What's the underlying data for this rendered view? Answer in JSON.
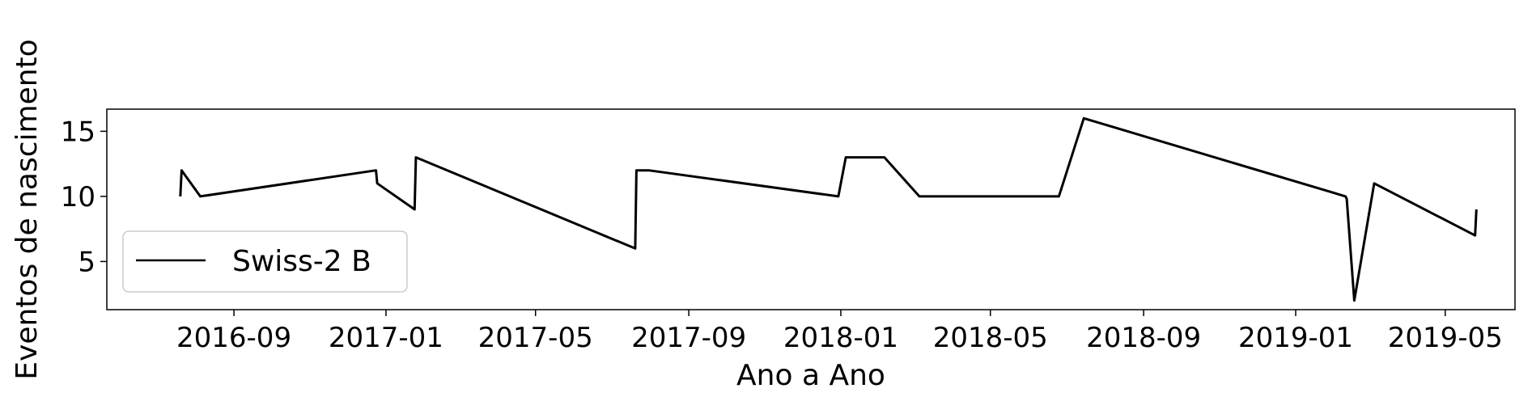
{
  "chart_data": {
    "type": "line",
    "title": "",
    "xlabel": "Ano a Ano",
    "ylabel": "Eventos de nascimento",
    "x_ticks": [
      "2016-09",
      "2017-01",
      "2017-05",
      "2017-09",
      "2018-01",
      "2018-05",
      "2018-09",
      "2019-01",
      "2019-05"
    ],
    "y_ticks": [
      5,
      10,
      15
    ],
    "xlim": [
      "2016-05-22",
      "2019-06-26"
    ],
    "ylim": [
      1.3,
      16.7
    ],
    "grid": false,
    "legend_position": "lower-left",
    "series": [
      {
        "name": "Swiss-2 B",
        "color": "#000000",
        "points": [
          {
            "x": "2016-07-20",
            "y": 10
          },
          {
            "x": "2016-07-21",
            "y": 12
          },
          {
            "x": "2016-08-05",
            "y": 10
          },
          {
            "x": "2016-12-24",
            "y": 12
          },
          {
            "x": "2016-12-25",
            "y": 11
          },
          {
            "x": "2017-01-24",
            "y": 9
          },
          {
            "x": "2017-01-25",
            "y": 13
          },
          {
            "x": "2017-07-20",
            "y": 6
          },
          {
            "x": "2017-07-21",
            "y": 12
          },
          {
            "x": "2017-07-31",
            "y": 12
          },
          {
            "x": "2017-12-30",
            "y": 10
          },
          {
            "x": "2018-01-05",
            "y": 13
          },
          {
            "x": "2018-02-05",
            "y": 13
          },
          {
            "x": "2018-03-05",
            "y": 10
          },
          {
            "x": "2018-06-25",
            "y": 10
          },
          {
            "x": "2018-07-15",
            "y": 16
          },
          {
            "x": "2019-02-10",
            "y": 10
          },
          {
            "x": "2019-02-11",
            "y": 9.8
          },
          {
            "x": "2019-02-17",
            "y": 2
          },
          {
            "x": "2019-03-05",
            "y": 11
          },
          {
            "x": "2019-05-25",
            "y": 7
          },
          {
            "x": "2019-05-26",
            "y": 9
          }
        ]
      }
    ]
  }
}
